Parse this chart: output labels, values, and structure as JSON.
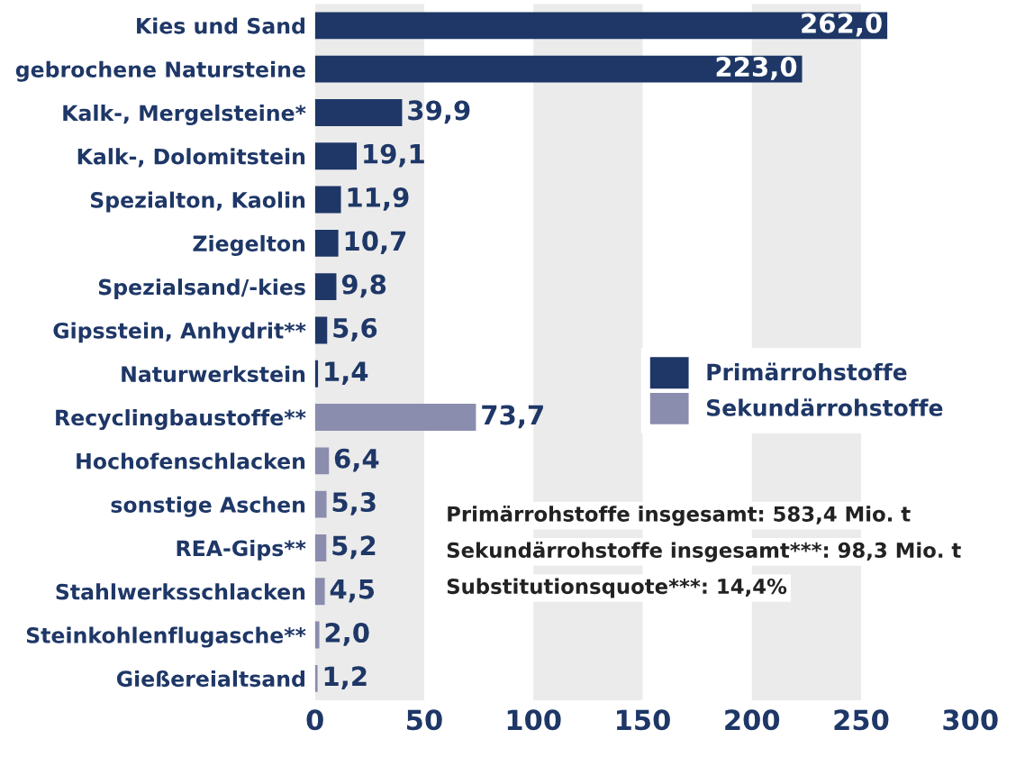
{
  "chart_data": {
    "type": "bar",
    "orientation": "horizontal",
    "categories": [
      "Kies und Sand",
      "gebrochene Natursteine",
      "Kalk-, Mergelsteine*",
      "Kalk-, Dolomitstein",
      "Spezialton, Kaolin",
      "Ziegelton",
      "Spezialsand/-kies",
      "Gipsstein, Anhydrit**",
      "Naturwerkstein",
      "Recyclingbaustoffe**",
      "Hochofenschlacken",
      "sonstige Aschen",
      "REA-Gips**",
      "Stahlwerksschlacken",
      "Steinkohlenflugasche**",
      "Gießereialtsand"
    ],
    "series": [
      {
        "name": "Primärrohstoffe",
        "color": "#1e3767",
        "values": [
          262.0,
          223.0,
          39.9,
          19.1,
          11.9,
          10.7,
          9.8,
          5.6,
          1.4,
          null,
          null,
          null,
          null,
          null,
          null,
          null
        ],
        "value_labels": [
          "262,0",
          "223,0",
          "39,9",
          "19,1",
          "11,9",
          "10,7",
          "9,8",
          "5,6",
          "1,4",
          null,
          null,
          null,
          null,
          null,
          null,
          null
        ]
      },
      {
        "name": "Sekundärrohstoffe",
        "color": "#8b8dae",
        "values": [
          null,
          null,
          null,
          null,
          null,
          null,
          null,
          null,
          null,
          73.7,
          6.4,
          5.3,
          5.2,
          4.5,
          2.0,
          1.2
        ],
        "value_labels": [
          null,
          null,
          null,
          null,
          null,
          null,
          null,
          null,
          null,
          "73,7",
          "6,4",
          "5,3",
          "5,2",
          "4,5",
          "2,0",
          "1,2"
        ]
      }
    ],
    "xlim": [
      0,
      300
    ],
    "xticks": [
      0,
      50,
      100,
      150,
      200,
      250,
      300
    ],
    "bands": [
      {
        "axis": "x",
        "from": 0,
        "to": 50,
        "color": "#ebebeb"
      },
      {
        "axis": "x",
        "from": 100,
        "to": 150,
        "color": "#ebebeb"
      },
      {
        "axis": "x",
        "from": 200,
        "to": 250,
        "color": "#ebebeb"
      }
    ],
    "grid": false,
    "legend": "right",
    "annotations": [
      "Primärrohstoffe insgesamt: 583,4 Mio. t",
      "Sekundärrohstoffe insgesamt***: 98,3 Mio. t",
      "Substitutionsquote***: 14,4%"
    ]
  }
}
